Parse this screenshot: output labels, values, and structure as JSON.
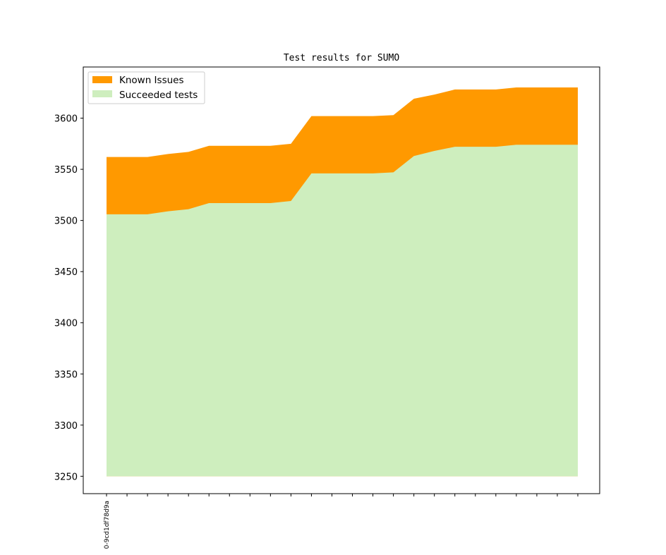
{
  "chart_data": {
    "type": "area",
    "title": "Test results for SUMO",
    "xlabel": "",
    "ylabel": "",
    "x_tick_labels": [
      "0-9cd1df78d9a"
    ],
    "n_points": 24,
    "ylim": [
      3233,
      3650
    ],
    "yticks": [
      3250,
      3300,
      3350,
      3400,
      3450,
      3500,
      3550,
      3600
    ],
    "baseline": 3250,
    "grid": false,
    "legend_position": "upper-left",
    "series": [
      {
        "name": "Known Issues",
        "color": "#ff9900",
        "values": [
          3562,
          3562,
          3562,
          3565,
          3567,
          3573,
          3573,
          3573,
          3573,
          3575,
          3602,
          3602,
          3602,
          3602,
          3603,
          3619,
          3623,
          3628,
          3628,
          3628,
          3630,
          3630,
          3630,
          3630
        ]
      },
      {
        "name": "Succeeded tests",
        "color": "#ceeebe",
        "values": [
          3506,
          3506,
          3506,
          3509,
          3511,
          3517,
          3517,
          3517,
          3517,
          3519,
          3546,
          3546,
          3546,
          3546,
          3547,
          3563,
          3568,
          3572,
          3572,
          3572,
          3574,
          3574,
          3574,
          3574
        ]
      }
    ]
  }
}
